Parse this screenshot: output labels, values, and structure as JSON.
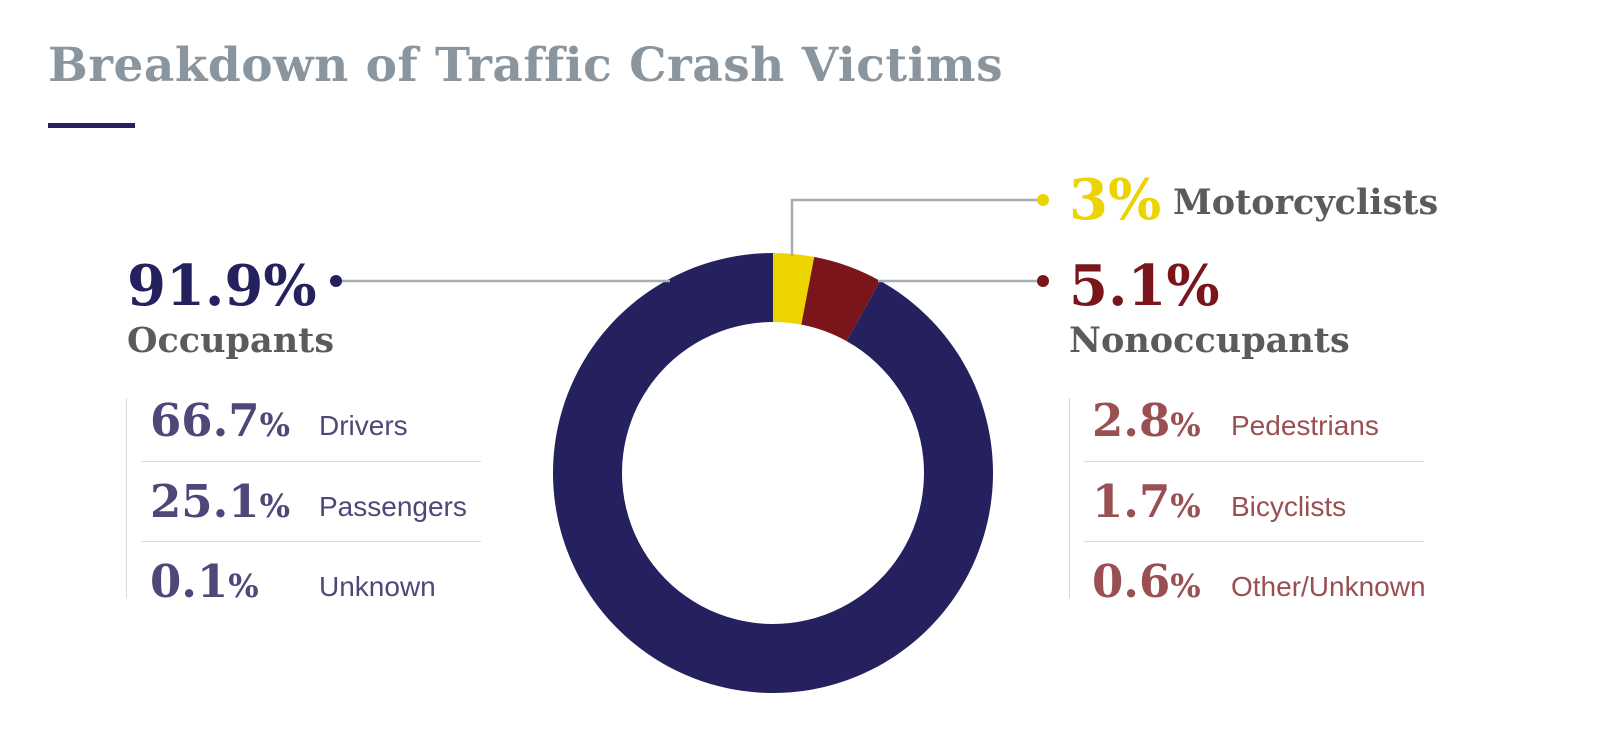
{
  "title": "Breakdown of Traffic Crash Victims",
  "colors": {
    "occupants": "#25215e",
    "nonoccupants": "#7a161b",
    "motorcyclists": "#ecd400",
    "occupant_sub": "#4d4878",
    "nonoccupant_sub": "#9a4f52",
    "leader": "#a5aeb4"
  },
  "chart_data": {
    "type": "pie",
    "style": "donut",
    "title": "Breakdown of Traffic Crash Victims",
    "slices": [
      {
        "label": "Motorcyclists",
        "value": 3,
        "display": "3%"
      },
      {
        "label": "Nonoccupants",
        "value": 5.1,
        "display": "5.1%"
      },
      {
        "label": "Occupants",
        "value": 91.9,
        "display": "91.9%"
      }
    ],
    "breakdowns": {
      "occupants": [
        {
          "value": "66.7",
          "unit": "%",
          "label": "Drivers"
        },
        {
          "value": "25.1",
          "unit": "%",
          "label": "Passengers"
        },
        {
          "value": "0.1",
          "unit": "%",
          "label": "Unknown"
        }
      ],
      "nonoccupants": [
        {
          "value": "2.8",
          "unit": "%",
          "label": "Pedestrians"
        },
        {
          "value": "1.7",
          "unit": "%",
          "label": "Bicyclists"
        },
        {
          "value": "0.6",
          "unit": "%",
          "label": "Other/Unknown"
        }
      ]
    }
  }
}
